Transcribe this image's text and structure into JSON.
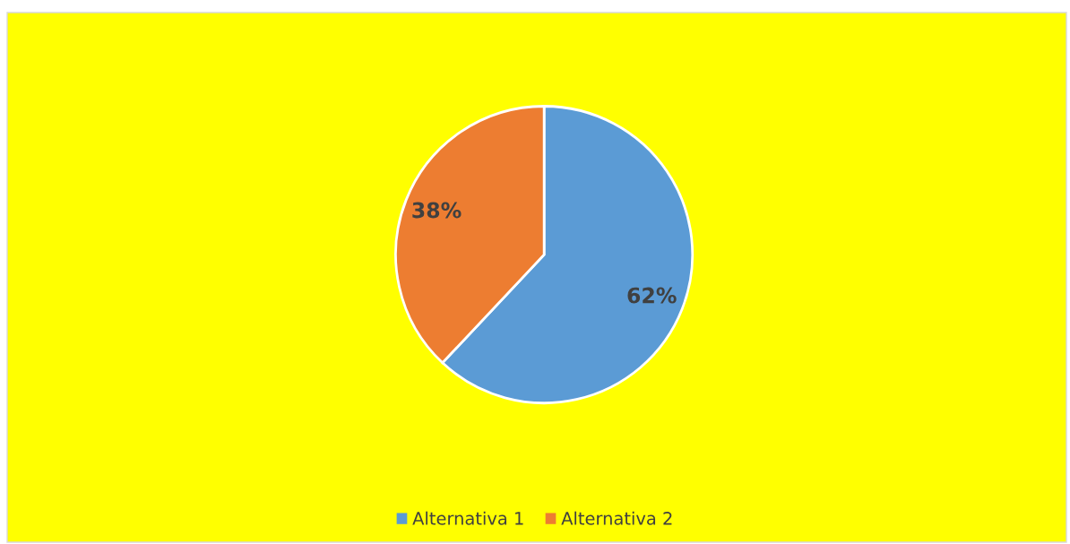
{
  "chart_data": {
    "type": "pie",
    "categories": [
      "Alternativa 1",
      "Alternativa 2"
    ],
    "values": [
      62,
      38
    ],
    "colors": [
      "#5b9bd5",
      "#ed7d31"
    ],
    "value_labels": [
      "62%",
      "38%"
    ],
    "legend": "bottom"
  }
}
